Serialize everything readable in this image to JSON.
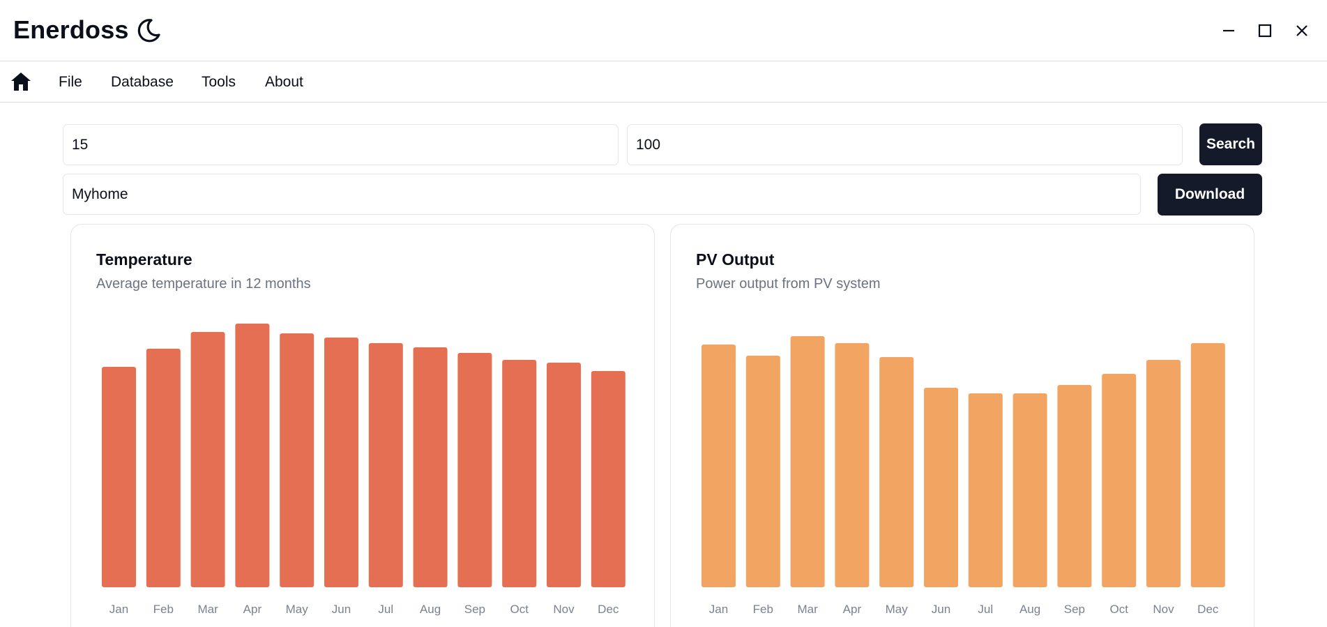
{
  "app": {
    "title": "Enerdoss"
  },
  "icons": {
    "theme": "moon-icon",
    "minimize": "minimize-icon",
    "maximize": "maximize-icon",
    "close": "close-icon",
    "home": "home-icon"
  },
  "menu": {
    "items": [
      "File",
      "Database",
      "Tools",
      "About"
    ]
  },
  "search": {
    "field1_value": "15",
    "field2_value": "100",
    "search_label": "Search"
  },
  "location": {
    "value": "Myhome",
    "download_label": "Download"
  },
  "colors": {
    "temperature_bar": "#e56f52",
    "pv_bar": "#f2a462",
    "button": "#151a2a"
  },
  "chart_data": [
    {
      "type": "bar",
      "title": "Temperature",
      "subtitle": "Average temperature in 12 months",
      "categories": [
        "Jan",
        "Feb",
        "Mar",
        "Apr",
        "May",
        "Jun",
        "Jul",
        "Aug",
        "Sep",
        "Oct",
        "Nov",
        "Dec"
      ],
      "values": [
        0.79,
        0.855,
        0.915,
        0.945,
        0.91,
        0.895,
        0.875,
        0.86,
        0.84,
        0.815,
        0.805,
        0.775
      ],
      "ylim": [
        0,
        1
      ],
      "xlabel": "",
      "ylabel": ""
    },
    {
      "type": "bar",
      "title": "PV Output",
      "subtitle": "Power output from PV system",
      "categories": [
        "Jan",
        "Feb",
        "Mar",
        "Apr",
        "May",
        "Jun",
        "Jul",
        "Aug",
        "Sep",
        "Oct",
        "Nov",
        "Dec"
      ],
      "values": [
        0.87,
        0.83,
        0.9,
        0.875,
        0.825,
        0.715,
        0.695,
        0.695,
        0.725,
        0.765,
        0.815,
        0.875
      ],
      "ylim": [
        0,
        1
      ],
      "xlabel": "",
      "ylabel": ""
    }
  ]
}
